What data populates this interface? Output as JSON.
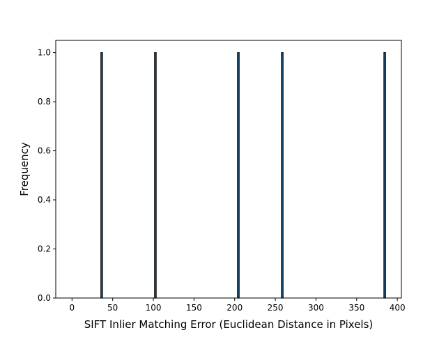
{
  "chart_data": {
    "type": "bar",
    "title": "",
    "xlabel": "SIFT Inlier Matching Error (Euclidean Distance in Pixels)",
    "ylabel": "Frequency",
    "xlim": [
      -20,
      405
    ],
    "ylim": [
      0,
      1.05
    ],
    "xticks": [
      0,
      50,
      100,
      150,
      200,
      250,
      300,
      350,
      400
    ],
    "yticks": [
      0.0,
      0.2,
      0.4,
      0.6,
      0.8,
      1.0
    ],
    "ytick_labels": [
      "0.0",
      "0.2",
      "0.4",
      "0.6",
      "0.8",
      "1.0"
    ],
    "grid": false,
    "legend": "none",
    "bar_width": 2,
    "bar_fill_color": "#1f77b4",
    "bar_edge_color": "#000000",
    "bars": [
      {
        "x": 36.5,
        "value": 1
      },
      {
        "x": 102.5,
        "value": 1
      },
      {
        "x": 204.5,
        "value": 1
      },
      {
        "x": 258.5,
        "value": 1
      },
      {
        "x": 384.5,
        "value": 1
      }
    ]
  }
}
